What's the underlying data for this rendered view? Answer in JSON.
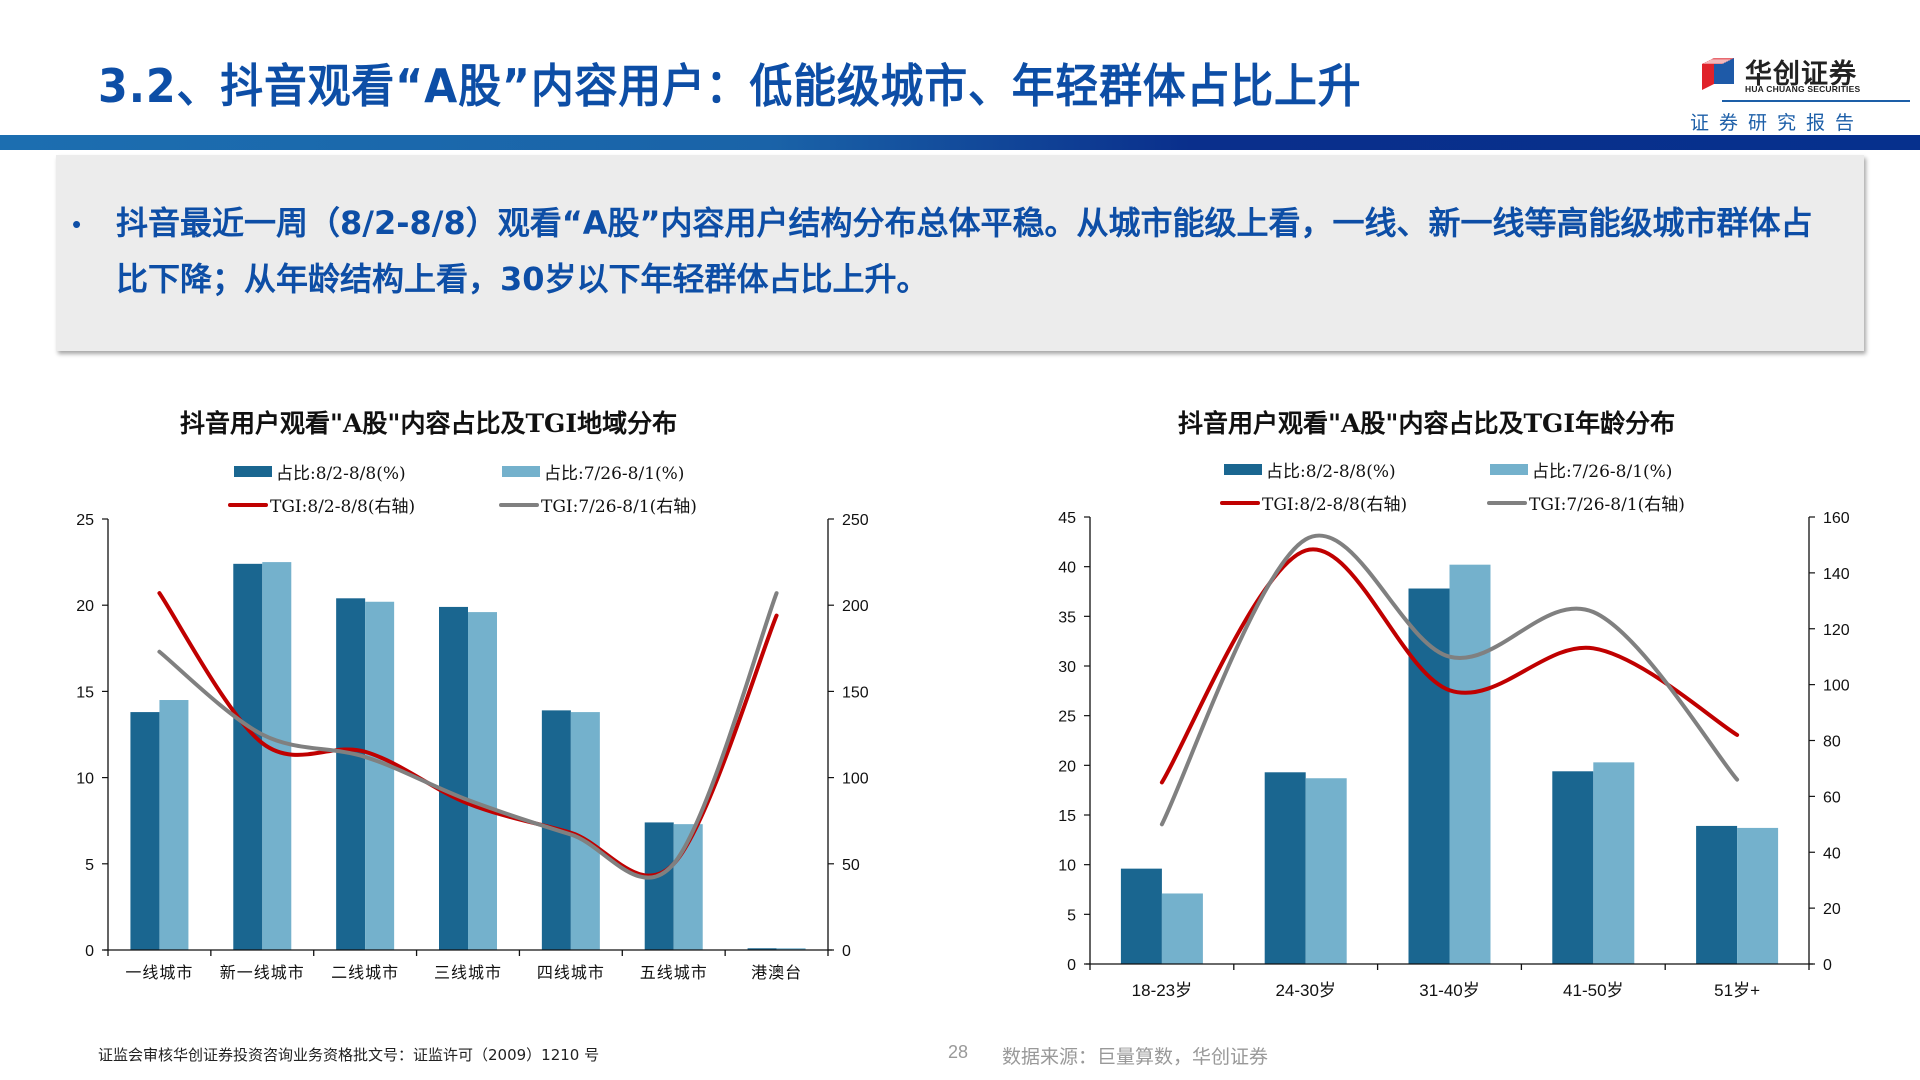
{
  "header": {
    "title": "3.2、抖音观看“A股”内容用户：低能级城市、年轻群体占比上升",
    "logo": {
      "cn": "华创证券",
      "en": "HUA CHUANG SECURITIES",
      "subtitle": "证券研究报告"
    },
    "colors": {
      "title": "#0d4ea6",
      "band_left": "#1c6eb0",
      "band_right": "#06308d"
    }
  },
  "summary": {
    "bullet": "•",
    "text": "抖音最近一周（8/2-8/8）观看“A股”内容用户结构分布总体平稳。从城市能级上看，一线、新一线等高能级城市群体占比下降；从年龄结构上看，30岁以下年轻群体占比上升。"
  },
  "legend": {
    "bar_current": "占比:8/2-8/8(%)",
    "bar_previous": "占比:7/26-8/1(%)",
    "line_current": "TGI:8/2-8/8(右轴)",
    "line_previous": "TGI:7/26-8/1(右轴)"
  },
  "colors": {
    "bar_current": "#1a6690",
    "bar_previous": "#74b1cc",
    "line_current": "#c00000",
    "line_previous": "#808080"
  },
  "chart_data": [
    {
      "type": "bar+line",
      "title": "抖音用户观看\"A股\"内容占比及TGI地域分布",
      "categories": [
        "一线城市",
        "新一线城市",
        "二线城市",
        "三线城市",
        "四线城市",
        "五线城市",
        "港澳台"
      ],
      "series": [
        {
          "name": "占比:8/2-8/8(%)",
          "type": "bar",
          "axis": "left",
          "values": [
            13.8,
            22.4,
            20.4,
            19.9,
            13.9,
            7.4,
            0.1
          ]
        },
        {
          "name": "占比:7/26-8/1(%)",
          "type": "bar",
          "axis": "left",
          "values": [
            14.5,
            22.5,
            20.2,
            19.6,
            13.8,
            7.3,
            0.1
          ]
        },
        {
          "name": "TGI:8/2-8/8(右轴)",
          "type": "line",
          "axis": "right",
          "values": [
            207,
            120,
            115,
            85,
            68,
            50,
            194
          ]
        },
        {
          "name": "TGI:7/26-8/1(右轴)",
          "type": "line",
          "axis": "right",
          "values": [
            173,
            125,
            112,
            87,
            67,
            50,
            207
          ]
        }
      ],
      "y_left": {
        "min": 0,
        "max": 25,
        "ticks": [
          0,
          5,
          10,
          15,
          20,
          25
        ]
      },
      "y_right": {
        "min": 0,
        "max": 250,
        "ticks": [
          0,
          50,
          100,
          150,
          200,
          250
        ]
      },
      "xlabel": "",
      "ylabel": "",
      "grid": false,
      "legend_position": "top"
    },
    {
      "type": "bar+line",
      "title": "抖音用户观看\"A股\"内容占比及TGI年龄分布",
      "categories": [
        "18-23岁",
        "24-30岁",
        "31-40岁",
        "41-50岁",
        "51岁+"
      ],
      "series": [
        {
          "name": "占比:8/2-8/8(%)",
          "type": "bar",
          "axis": "left",
          "values": [
            9.6,
            19.3,
            37.8,
            19.4,
            13.9
          ]
        },
        {
          "name": "占比:7/26-8/1(%)",
          "type": "bar",
          "axis": "left",
          "values": [
            7.1,
            18.7,
            40.2,
            20.3,
            13.7
          ]
        },
        {
          "name": "TGI:8/2-8/8(右轴)",
          "type": "line",
          "axis": "right",
          "values": [
            65,
            148,
            98,
            113,
            82
          ]
        },
        {
          "name": "TGI:7/26-8/1(右轴)",
          "type": "line",
          "axis": "right",
          "values": [
            50,
            152,
            110,
            126,
            66
          ]
        }
      ],
      "y_left": {
        "min": 0,
        "max": 45,
        "ticks": [
          0,
          5,
          10,
          15,
          20,
          25,
          30,
          35,
          40,
          45
        ]
      },
      "y_right": {
        "min": 0,
        "max": 160,
        "ticks": [
          0,
          20,
          40,
          60,
          80,
          100,
          120,
          140,
          160
        ]
      },
      "xlabel": "",
      "ylabel": "",
      "grid": false,
      "legend_position": "top"
    }
  ],
  "footer": {
    "license": "证监会审核华创证券投资咨询业务资格批文号：证监许可（2009）1210 号",
    "page": "28",
    "source": "数据来源：巨量算数，华创证券"
  }
}
